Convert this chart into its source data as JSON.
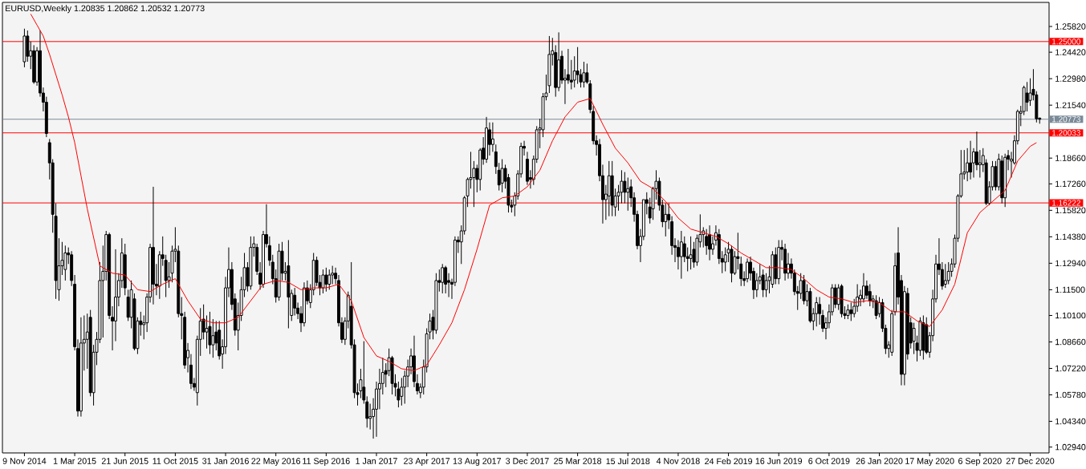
{
  "chart_data": {
    "type": "candlestick",
    "title": "EURUSD,Weekly 1.20835 1.20862 1.20532 1.20773",
    "xlim": [
      "2014-09-21",
      "2021-02-07"
    ],
    "xticks": [
      {
        "value": "2014-11-09",
        "label": "9 Nov 2014"
      },
      {
        "value": "2015-03-01",
        "label": "1 Mar 2015"
      },
      {
        "value": "2015-06-21",
        "label": "21 Jun 2015"
      },
      {
        "value": "2015-10-11",
        "label": "11 Oct 2015"
      },
      {
        "value": "2016-01-31",
        "label": "31 Jan 2016"
      },
      {
        "value": "2016-05-22",
        "label": "22 May 2016"
      },
      {
        "value": "2016-09-11",
        "label": "11 Sep 2016"
      },
      {
        "value": "2017-01-01",
        "label": "1 Jan 2017"
      },
      {
        "value": "2017-04-23",
        "label": "23 Apr 2017"
      },
      {
        "value": "2017-08-13",
        "label": "13 Aug 2017"
      },
      {
        "value": "2017-12-03",
        "label": "3 Dec 2017"
      },
      {
        "value": "2018-03-25",
        "label": "25 Mar 2018"
      },
      {
        "value": "2018-07-15",
        "label": "15 Jul 2018"
      },
      {
        "value": "2018-11-04",
        "label": "4 Nov 2018"
      },
      {
        "value": "2019-02-24",
        "label": "24 Feb 2019"
      },
      {
        "value": "2019-06-16",
        "label": "16 Jun 2019"
      },
      {
        "value": "2019-10-06",
        "label": "6 Oct 2019"
      },
      {
        "value": "2020-01-26",
        "label": "26 Jan 2020"
      },
      {
        "value": "2020-05-17",
        "label": "17 May 2020"
      },
      {
        "value": "2020-09-06",
        "label": "6 Sep 2020"
      },
      {
        "value": "2020-12-27",
        "label": "27 Dec 2020"
      }
    ],
    "ylim": [
      1.0262,
      1.2713
    ],
    "yticks": [
      {
        "value": 1.2582,
        "label": "1.25820"
      },
      {
        "value": 1.2442,
        "label": "1.24420"
      },
      {
        "value": 1.2298,
        "label": "1.22980"
      },
      {
        "value": 1.2154,
        "label": "1.21540"
      },
      {
        "value": 1.1866,
        "label": "1.18660"
      },
      {
        "value": 1.1726,
        "label": "1.17260"
      },
      {
        "value": 1.1582,
        "label": "1.15820"
      },
      {
        "value": 1.1438,
        "label": "1.14380"
      },
      {
        "value": 1.1294,
        "label": "1.12940"
      },
      {
        "value": 1.115,
        "label": "1.11500"
      },
      {
        "value": 1.101,
        "label": "1.10100"
      },
      {
        "value": 1.0866,
        "label": "1.08660"
      },
      {
        "value": 1.0722,
        "label": "1.07220"
      },
      {
        "value": 1.0578,
        "label": "1.05780"
      },
      {
        "value": 1.0434,
        "label": "1.04340"
      },
      {
        "value": 1.0294,
        "label": "1.02940"
      }
    ],
    "ref_lines": [
      {
        "axis": "y",
        "value": 1.25,
        "label": "1.25000",
        "color": "#ff0000"
      },
      {
        "axis": "y",
        "value": 1.20773,
        "label": "1.20773",
        "color": "#7b8a99"
      },
      {
        "axis": "y",
        "value": 1.20033,
        "label": "1.20033",
        "color": "#ff0000"
      },
      {
        "axis": "y",
        "value": 1.16222,
        "label": "1.16222",
        "color": "#ff0000"
      }
    ],
    "x": [
      "2014-11-09",
      "2014-11-16",
      "2014-11-23",
      "2014-11-30",
      "2014-12-07",
      "2014-12-14",
      "2014-12-21",
      "2014-12-28",
      "2015-01-04",
      "2015-01-11",
      "2015-01-18",
      "2015-01-25",
      "2015-02-01",
      "2015-02-08",
      "2015-02-15",
      "2015-02-22",
      "2015-03-01",
      "2015-03-08",
      "2015-03-15",
      "2015-03-22",
      "2015-03-29",
      "2015-04-05",
      "2015-04-12",
      "2015-04-19",
      "2015-04-26",
      "2015-05-03",
      "2015-05-10",
      "2015-05-17",
      "2015-05-24",
      "2015-05-31",
      "2015-06-07",
      "2015-06-14",
      "2015-06-21",
      "2015-06-28",
      "2015-07-05",
      "2015-07-12",
      "2015-07-19",
      "2015-07-26",
      "2015-08-02",
      "2015-08-09",
      "2015-08-16",
      "2015-08-23",
      "2015-08-30",
      "2015-09-06",
      "2015-09-13",
      "2015-09-20",
      "2015-09-27",
      "2015-10-04",
      "2015-10-11",
      "2015-10-18",
      "2015-10-25",
      "2015-11-01",
      "2015-11-08",
      "2015-11-15",
      "2015-11-22",
      "2015-11-29",
      "2015-12-06",
      "2015-12-13",
      "2015-12-20",
      "2015-12-27",
      "2016-01-03",
      "2016-01-10",
      "2016-01-17",
      "2016-01-24",
      "2016-01-31",
      "2016-02-07",
      "2016-02-14",
      "2016-02-21",
      "2016-02-28",
      "2016-03-06",
      "2016-03-13",
      "2016-03-20",
      "2016-03-27",
      "2016-04-03",
      "2016-04-10",
      "2016-04-17",
      "2016-04-24",
      "2016-05-01",
      "2016-05-08",
      "2016-05-15",
      "2016-05-22",
      "2016-05-29",
      "2016-06-05",
      "2016-06-12",
      "2016-06-19",
      "2016-06-26",
      "2016-07-03",
      "2016-07-10",
      "2016-07-17",
      "2016-07-24",
      "2016-07-31",
      "2016-08-07",
      "2016-08-14",
      "2016-08-21",
      "2016-08-28",
      "2016-09-04",
      "2016-09-11",
      "2016-09-18",
      "2016-09-25",
      "2016-10-02",
      "2016-10-09",
      "2016-10-16",
      "2016-10-23",
      "2016-10-30",
      "2016-11-06",
      "2016-11-13",
      "2016-11-20",
      "2016-11-27",
      "2016-12-04",
      "2016-12-11",
      "2016-12-18",
      "2016-12-25",
      "2017-01-01",
      "2017-01-08",
      "2017-01-15",
      "2017-01-22",
      "2017-01-29",
      "2017-02-05",
      "2017-02-12",
      "2017-02-19",
      "2017-02-26",
      "2017-03-05",
      "2017-03-12",
      "2017-03-19",
      "2017-03-26",
      "2017-04-02",
      "2017-04-09",
      "2017-04-16",
      "2017-04-23",
      "2017-04-30",
      "2017-05-07",
      "2017-05-14",
      "2017-05-21",
      "2017-05-28",
      "2017-06-04",
      "2017-06-11",
      "2017-06-18",
      "2017-06-25",
      "2017-07-02",
      "2017-07-09",
      "2017-07-16",
      "2017-07-23",
      "2017-07-30",
      "2017-08-06",
      "2017-08-13",
      "2017-08-20",
      "2017-08-27",
      "2017-09-03",
      "2017-09-10",
      "2017-09-17",
      "2017-09-24",
      "2017-10-01",
      "2017-10-08",
      "2017-10-15",
      "2017-10-22",
      "2017-10-29",
      "2017-11-05",
      "2017-11-12",
      "2017-11-19",
      "2017-11-26",
      "2017-12-03",
      "2017-12-10",
      "2017-12-17",
      "2017-12-24",
      "2017-12-31",
      "2018-01-07",
      "2018-01-14",
      "2018-01-21",
      "2018-01-28",
      "2018-02-04",
      "2018-02-11",
      "2018-02-18",
      "2018-02-25",
      "2018-03-04",
      "2018-03-11",
      "2018-03-18",
      "2018-03-25",
      "2018-04-01",
      "2018-04-08",
      "2018-04-15",
      "2018-04-22",
      "2018-04-29",
      "2018-05-06",
      "2018-05-13",
      "2018-05-20",
      "2018-05-27",
      "2018-06-03",
      "2018-06-10",
      "2018-06-17",
      "2018-06-24",
      "2018-07-01",
      "2018-07-08",
      "2018-07-15",
      "2018-07-22",
      "2018-07-29",
      "2018-08-05",
      "2018-08-12",
      "2018-08-19",
      "2018-08-26",
      "2018-09-02",
      "2018-09-09",
      "2018-09-16",
      "2018-09-23",
      "2018-09-30",
      "2018-10-07",
      "2018-10-14",
      "2018-10-21",
      "2018-10-28",
      "2018-11-04",
      "2018-11-11",
      "2018-11-18",
      "2018-11-25",
      "2018-12-02",
      "2018-12-09",
      "2018-12-16",
      "2018-12-23",
      "2018-12-30",
      "2019-01-06",
      "2019-01-13",
      "2019-01-20",
      "2019-01-27",
      "2019-02-03",
      "2019-02-10",
      "2019-02-17",
      "2019-02-24",
      "2019-03-03",
      "2019-03-10",
      "2019-03-17",
      "2019-03-24",
      "2019-03-31",
      "2019-04-07",
      "2019-04-14",
      "2019-04-21",
      "2019-04-28",
      "2019-05-05",
      "2019-05-12",
      "2019-05-19",
      "2019-05-26",
      "2019-06-02",
      "2019-06-09",
      "2019-06-16",
      "2019-06-23",
      "2019-06-30",
      "2019-07-07",
      "2019-07-14",
      "2019-07-21",
      "2019-07-28",
      "2019-08-04",
      "2019-08-11",
      "2019-08-18",
      "2019-08-25",
      "2019-09-01",
      "2019-09-08",
      "2019-09-15",
      "2019-09-22",
      "2019-09-29",
      "2019-10-06",
      "2019-10-13",
      "2019-10-20",
      "2019-10-27",
      "2019-11-03",
      "2019-11-10",
      "2019-11-17",
      "2019-11-24",
      "2019-12-01",
      "2019-12-08",
      "2019-12-15",
      "2019-12-22",
      "2019-12-29",
      "2020-01-05",
      "2020-01-12",
      "2020-01-19",
      "2020-01-26",
      "2020-02-02",
      "2020-02-09",
      "2020-02-16",
      "2020-02-23",
      "2020-03-01",
      "2020-03-08",
      "2020-03-15",
      "2020-03-22",
      "2020-03-29",
      "2020-04-05",
      "2020-04-12",
      "2020-04-19",
      "2020-04-26",
      "2020-05-03",
      "2020-05-10",
      "2020-05-17",
      "2020-05-24",
      "2020-05-31",
      "2020-06-07",
      "2020-06-14",
      "2020-06-21",
      "2020-06-28",
      "2020-07-05",
      "2020-07-12",
      "2020-07-19",
      "2020-07-26",
      "2020-08-02",
      "2020-08-09",
      "2020-08-16",
      "2020-08-23",
      "2020-08-30",
      "2020-09-06",
      "2020-09-13",
      "2020-09-20",
      "2020-09-27",
      "2020-10-04",
      "2020-10-11",
      "2020-10-18",
      "2020-10-25",
      "2020-11-01",
      "2020-11-08",
      "2020-11-15",
      "2020-11-22",
      "2020-11-29",
      "2020-12-06",
      "2020-12-13",
      "2020-12-20",
      "2020-12-27",
      "2021-01-03",
      "2021-01-10",
      "2021-01-17"
    ],
    "ohlc": [
      [
        1.239,
        1.257,
        1.236,
        1.253
      ],
      [
        1.253,
        1.256,
        1.239,
        1.242
      ],
      [
        1.242,
        1.25,
        1.235,
        1.245
      ],
      [
        1.245,
        1.248,
        1.227,
        1.228
      ],
      [
        1.228,
        1.247,
        1.226,
        1.245
      ],
      [
        1.245,
        1.256,
        1.22,
        1.222
      ],
      [
        1.222,
        1.225,
        1.212,
        1.217
      ],
      [
        1.217,
        1.22,
        1.198,
        1.2
      ],
      [
        1.195,
        1.197,
        1.175,
        1.184
      ],
      [
        1.184,
        1.186,
        1.146,
        1.156
      ],
      [
        1.155,
        1.162,
        1.11,
        1.12
      ],
      [
        1.115,
        1.143,
        1.109,
        1.128
      ],
      [
        1.128,
        1.141,
        1.123,
        1.131
      ],
      [
        1.126,
        1.139,
        1.12,
        1.135
      ],
      [
        1.135,
        1.138,
        1.129,
        1.134
      ],
      [
        1.134,
        1.136,
        1.117,
        1.12
      ],
      [
        1.118,
        1.123,
        1.082,
        1.084
      ],
      [
        1.083,
        1.088,
        1.046,
        1.049
      ],
      [
        1.049,
        1.1,
        1.046,
        1.086
      ],
      [
        1.086,
        1.101,
        1.071,
        1.088
      ],
      [
        1.088,
        1.102,
        1.072,
        1.092
      ],
      [
        1.1,
        1.104,
        1.057,
        1.059
      ],
      [
        1.059,
        1.085,
        1.052,
        1.081
      ],
      [
        1.081,
        1.092,
        1.074,
        1.088
      ],
      [
        1.088,
        1.13,
        1.086,
        1.12
      ],
      [
        1.12,
        1.139,
        1.089,
        1.125
      ],
      [
        1.125,
        1.147,
        1.12,
        1.145
      ],
      [
        1.145,
        1.146,
        1.099,
        1.101
      ],
      [
        1.1,
        1.106,
        1.082,
        1.098
      ],
      [
        1.098,
        1.137,
        1.087,
        1.111
      ],
      [
        1.111,
        1.124,
        1.106,
        1.12
      ],
      [
        1.12,
        1.143,
        1.116,
        1.135
      ],
      [
        1.134,
        1.14,
        1.112,
        1.116
      ],
      [
        1.111,
        1.115,
        1.098,
        1.1
      ],
      [
        1.1,
        1.12,
        1.094,
        1.115
      ],
      [
        1.11,
        1.113,
        1.082,
        1.083
      ],
      [
        1.083,
        1.1,
        1.08,
        1.098
      ],
      [
        1.098,
        1.103,
        1.09,
        1.096
      ],
      [
        1.096,
        1.101,
        1.088,
        1.097
      ],
      [
        1.097,
        1.113,
        1.092,
        1.111
      ],
      [
        1.111,
        1.14,
        1.108,
        1.138
      ],
      [
        1.138,
        1.171,
        1.107,
        1.118
      ],
      [
        1.118,
        1.129,
        1.112,
        1.117
      ],
      [
        1.117,
        1.136,
        1.11,
        1.134
      ],
      [
        1.134,
        1.144,
        1.128,
        1.132
      ],
      [
        1.131,
        1.134,
        1.111,
        1.12
      ],
      [
        1.12,
        1.13,
        1.116,
        1.122
      ],
      [
        1.124,
        1.139,
        1.119,
        1.136
      ],
      [
        1.136,
        1.149,
        1.13,
        1.137
      ],
      [
        1.136,
        1.139,
        1.1,
        1.102
      ],
      [
        1.102,
        1.111,
        1.088,
        1.101
      ],
      [
        1.1,
        1.103,
        1.072,
        1.074
      ],
      [
        1.078,
        1.086,
        1.07,
        1.082
      ],
      [
        1.074,
        1.08,
        1.061,
        1.064
      ],
      [
        1.064,
        1.067,
        1.06,
        1.062
      ],
      [
        1.059,
        1.09,
        1.052,
        1.088
      ],
      [
        1.088,
        1.105,
        1.079,
        1.098
      ],
      [
        1.099,
        1.107,
        1.088,
        1.092
      ],
      [
        1.092,
        1.101,
        1.083,
        1.094
      ],
      [
        1.095,
        1.103,
        1.08,
        1.085
      ],
      [
        1.085,
        1.099,
        1.078,
        1.09
      ],
      [
        1.092,
        1.098,
        1.082,
        1.086
      ],
      [
        1.093,
        1.098,
        1.077,
        1.079
      ],
      [
        1.08,
        1.088,
        1.072,
        1.084
      ],
      [
        1.084,
        1.122,
        1.08,
        1.116
      ],
      [
        1.116,
        1.138,
        1.111,
        1.126
      ],
      [
        1.126,
        1.13,
        1.104,
        1.107
      ],
      [
        1.11,
        1.113,
        1.09,
        1.093
      ],
      [
        1.093,
        1.108,
        1.082,
        1.101
      ],
      [
        1.101,
        1.122,
        1.098,
        1.115
      ],
      [
        1.115,
        1.135,
        1.111,
        1.127
      ],
      [
        1.127,
        1.13,
        1.114,
        1.117
      ],
      [
        1.117,
        1.144,
        1.115,
        1.138
      ],
      [
        1.138,
        1.144,
        1.133,
        1.14
      ],
      [
        1.138,
        1.14,
        1.123,
        1.125
      ],
      [
        1.124,
        1.13,
        1.115,
        1.118
      ],
      [
        1.118,
        1.147,
        1.116,
        1.145
      ],
      [
        1.145,
        1.1615,
        1.138,
        1.14
      ],
      [
        1.139,
        1.144,
        1.128,
        1.131
      ],
      [
        1.13,
        1.134,
        1.118,
        1.121
      ],
      [
        1.121,
        1.126,
        1.108,
        1.111
      ],
      [
        1.111,
        1.14,
        1.109,
        1.136
      ],
      [
        1.136,
        1.141,
        1.12,
        1.124
      ],
      [
        1.124,
        1.13,
        1.12,
        1.125
      ],
      [
        1.128,
        1.142,
        1.094,
        1.111
      ],
      [
        1.101,
        1.115,
        1.098,
        1.113
      ],
      [
        1.112,
        1.116,
        1.101,
        1.105
      ],
      [
        1.105,
        1.108,
        1.099,
        1.102
      ],
      [
        1.102,
        1.106,
        1.092,
        1.097
      ],
      [
        1.097,
        1.119,
        1.095,
        1.116
      ],
      [
        1.116,
        1.12,
        1.107,
        1.109
      ],
      [
        1.108,
        1.118,
        1.105,
        1.115
      ],
      [
        1.115,
        1.135,
        1.112,
        1.131
      ],
      [
        1.131,
        1.133,
        1.117,
        1.119
      ],
      [
        1.119,
        1.123,
        1.112,
        1.116
      ],
      [
        1.116,
        1.126,
        1.113,
        1.123
      ],
      [
        1.123,
        1.127,
        1.114,
        1.118
      ],
      [
        1.118,
        1.126,
        1.115,
        1.123
      ],
      [
        1.123,
        1.128,
        1.118,
        1.124
      ],
      [
        1.124,
        1.127,
        1.118,
        1.121
      ],
      [
        1.12,
        1.123,
        1.095,
        1.097
      ],
      [
        1.097,
        1.1,
        1.086,
        1.088
      ],
      [
        1.088,
        1.1,
        1.085,
        1.098
      ],
      [
        1.098,
        1.114,
        1.094,
        1.112
      ],
      [
        1.106,
        1.13,
        1.083,
        1.085
      ],
      [
        1.085,
        1.088,
        1.056,
        1.059
      ],
      [
        1.059,
        1.064,
        1.052,
        1.058
      ],
      [
        1.06,
        1.072,
        1.056,
        1.066
      ],
      [
        1.062,
        1.087,
        1.053,
        1.055
      ],
      [
        1.054,
        1.057,
        1.04,
        1.045
      ],
      [
        1.045,
        1.053,
        1.039,
        1.046
      ],
      [
        1.046,
        1.056,
        1.034,
        1.05
      ],
      [
        1.05,
        1.065,
        1.035,
        1.061
      ],
      [
        1.061,
        1.072,
        1.05,
        1.064
      ],
      [
        1.064,
        1.078,
        1.058,
        1.07
      ],
      [
        1.071,
        1.075,
        1.062,
        1.069
      ],
      [
        1.071,
        1.083,
        1.068,
        1.078
      ],
      [
        1.078,
        1.079,
        1.058,
        1.064
      ],
      [
        1.064,
        1.069,
        1.057,
        1.062
      ],
      [
        1.061,
        1.065,
        1.051,
        1.055
      ],
      [
        1.057,
        1.067,
        1.052,
        1.062
      ],
      [
        1.062,
        1.071,
        1.053,
        1.068
      ],
      [
        1.068,
        1.077,
        1.062,
        1.073
      ],
      [
        1.073,
        1.083,
        1.069,
        1.079
      ],
      [
        1.079,
        1.09,
        1.062,
        1.065
      ],
      [
        1.064,
        1.069,
        1.058,
        1.06
      ],
      [
        1.059,
        1.064,
        1.056,
        1.062
      ],
      [
        1.062,
        1.077,
        1.058,
        1.073
      ],
      [
        1.073,
        1.094,
        1.07,
        1.091
      ],
      [
        1.092,
        1.102,
        1.088,
        1.098
      ],
      [
        1.1,
        1.104,
        1.088,
        1.093
      ],
      [
        1.093,
        1.124,
        1.091,
        1.12
      ],
      [
        1.12,
        1.126,
        1.114,
        1.119
      ],
      [
        1.119,
        1.129,
        1.113,
        1.127
      ],
      [
        1.127,
        1.128,
        1.113,
        1.118
      ],
      [
        1.12,
        1.124,
        1.111,
        1.119
      ],
      [
        1.119,
        1.121,
        1.11,
        1.118
      ],
      [
        1.119,
        1.144,
        1.117,
        1.142
      ],
      [
        1.142,
        1.144,
        1.135,
        1.141
      ],
      [
        1.141,
        1.15,
        1.129,
        1.147
      ],
      [
        1.147,
        1.166,
        1.145,
        1.165
      ],
      [
        1.166,
        1.176,
        1.16,
        1.175
      ],
      [
        1.175,
        1.19,
        1.17,
        1.176
      ],
      [
        1.176,
        1.185,
        1.16,
        1.181
      ],
      [
        1.181,
        1.183,
        1.168,
        1.175
      ],
      [
        1.175,
        1.192,
        1.169,
        1.191
      ],
      [
        1.192,
        1.198,
        1.183,
        1.186
      ],
      [
        1.186,
        1.209,
        1.184,
        1.203
      ],
      [
        1.202,
        1.206,
        1.188,
        1.194
      ],
      [
        1.194,
        1.206,
        1.19,
        1.197
      ],
      [
        1.19,
        1.194,
        1.178,
        1.182
      ],
      [
        1.18,
        1.184,
        1.169,
        1.172
      ],
      [
        1.173,
        1.186,
        1.168,
        1.181
      ],
      [
        1.181,
        1.183,
        1.17,
        1.174
      ],
      [
        1.176,
        1.178,
        1.157,
        1.161
      ],
      [
        1.161,
        1.164,
        1.157,
        1.16
      ],
      [
        1.161,
        1.168,
        1.155,
        1.166
      ],
      [
        1.166,
        1.18,
        1.164,
        1.178
      ],
      [
        1.178,
        1.195,
        1.176,
        1.193
      ],
      [
        1.193,
        1.196,
        1.188,
        1.192
      ],
      [
        1.186,
        1.19,
        1.172,
        1.174
      ],
      [
        1.176,
        1.18,
        1.17,
        1.175
      ],
      [
        1.175,
        1.188,
        1.172,
        1.186
      ],
      [
        1.186,
        1.204,
        1.184,
        1.202
      ],
      [
        1.202,
        1.208,
        1.192,
        1.203
      ],
      [
        1.202,
        1.222,
        1.198,
        1.22
      ],
      [
        1.22,
        1.232,
        1.218,
        1.222
      ],
      [
        1.226,
        1.253,
        1.222,
        1.243
      ],
      [
        1.243,
        1.252,
        1.237,
        1.245
      ],
      [
        1.244,
        1.248,
        1.22,
        1.225
      ],
      [
        1.225,
        1.255,
        1.223,
        1.24
      ],
      [
        1.242,
        1.245,
        1.227,
        1.229
      ],
      [
        1.229,
        1.235,
        1.216,
        1.23
      ],
      [
        1.232,
        1.246,
        1.227,
        1.229
      ],
      [
        1.229,
        1.24,
        1.224,
        1.228
      ],
      [
        1.229,
        1.242,
        1.225,
        1.234
      ],
      [
        1.234,
        1.247,
        1.227,
        1.232
      ],
      [
        1.232,
        1.235,
        1.225,
        1.228
      ],
      [
        1.228,
        1.239,
        1.225,
        1.233
      ],
      [
        1.233,
        1.238,
        1.227,
        1.228
      ],
      [
        1.227,
        1.229,
        1.211,
        1.213
      ],
      [
        1.212,
        1.215,
        1.194,
        1.196
      ],
      [
        1.196,
        1.199,
        1.188,
        1.194
      ],
      [
        1.194,
        1.197,
        1.174,
        1.177
      ],
      [
        1.177,
        1.183,
        1.151,
        1.164
      ],
      [
        1.164,
        1.172,
        1.153,
        1.167
      ],
      [
        1.166,
        1.185,
        1.155,
        1.177
      ],
      [
        1.177,
        1.185,
        1.155,
        1.161
      ],
      [
        1.16,
        1.17,
        1.155,
        1.166
      ],
      [
        1.166,
        1.172,
        1.158,
        1.168
      ],
      [
        1.168,
        1.18,
        1.162,
        1.174
      ],
      [
        1.174,
        1.179,
        1.162,
        1.168
      ],
      [
        1.168,
        1.176,
        1.158,
        1.17
      ],
      [
        1.171,
        1.175,
        1.16,
        1.165
      ],
      [
        1.165,
        1.168,
        1.152,
        1.156
      ],
      [
        1.156,
        1.158,
        1.137,
        1.139
      ],
      [
        1.139,
        1.148,
        1.13,
        1.144
      ],
      [
        1.144,
        1.164,
        1.142,
        1.164
      ],
      [
        1.164,
        1.168,
        1.156,
        1.162
      ],
      [
        1.16,
        1.165,
        1.151,
        1.154
      ],
      [
        1.159,
        1.171,
        1.153,
        1.17
      ],
      [
        1.17,
        1.18,
        1.164,
        1.174
      ],
      [
        1.174,
        1.176,
        1.158,
        1.161
      ],
      [
        1.161,
        1.164,
        1.149,
        1.152
      ],
      [
        1.152,
        1.162,
        1.144,
        1.156
      ],
      [
        1.156,
        1.162,
        1.148,
        1.153
      ],
      [
        1.152,
        1.155,
        1.134,
        1.139
      ],
      [
        1.139,
        1.143,
        1.13,
        1.138
      ],
      [
        1.138,
        1.142,
        1.126,
        1.133
      ],
      [
        1.133,
        1.147,
        1.121,
        1.141
      ],
      [
        1.14,
        1.144,
        1.13,
        1.133
      ],
      [
        1.133,
        1.138,
        1.125,
        1.132
      ],
      [
        1.132,
        1.144,
        1.126,
        1.134
      ],
      [
        1.137,
        1.141,
        1.127,
        1.13
      ],
      [
        1.13,
        1.145,
        1.128,
        1.143
      ],
      [
        1.141,
        1.156,
        1.138,
        1.145
      ],
      [
        1.145,
        1.149,
        1.138,
        1.147
      ],
      [
        1.144,
        1.148,
        1.134,
        1.139
      ],
      [
        1.145,
        1.15,
        1.131,
        1.137
      ],
      [
        1.137,
        1.144,
        1.134,
        1.14
      ],
      [
        1.142,
        1.15,
        1.139,
        1.146
      ],
      [
        1.145,
        1.148,
        1.129,
        1.132
      ],
      [
        1.132,
        1.136,
        1.124,
        1.13
      ],
      [
        1.13,
        1.138,
        1.125,
        1.134
      ],
      [
        1.135,
        1.141,
        1.13,
        1.137
      ],
      [
        1.137,
        1.139,
        1.119,
        1.124
      ],
      [
        1.124,
        1.136,
        1.123,
        1.133
      ],
      [
        1.133,
        1.146,
        1.126,
        1.132
      ],
      [
        1.129,
        1.133,
        1.117,
        1.121
      ],
      [
        1.121,
        1.125,
        1.117,
        1.12
      ],
      [
        1.121,
        1.132,
        1.119,
        1.13
      ],
      [
        1.13,
        1.133,
        1.12,
        1.124
      ],
      [
        1.125,
        1.127,
        1.11,
        1.115
      ],
      [
        1.115,
        1.124,
        1.111,
        1.12
      ],
      [
        1.12,
        1.129,
        1.118,
        1.122
      ],
      [
        1.123,
        1.126,
        1.111,
        1.115
      ],
      [
        1.115,
        1.124,
        1.111,
        1.12
      ],
      [
        1.12,
        1.128,
        1.113,
        1.122
      ],
      [
        1.118,
        1.136,
        1.116,
        1.134
      ],
      [
        1.134,
        1.138,
        1.118,
        1.121
      ],
      [
        1.121,
        1.142,
        1.118,
        1.138
      ],
      [
        1.138,
        1.142,
        1.131,
        1.137
      ],
      [
        1.137,
        1.14,
        1.12,
        1.124
      ],
      [
        1.124,
        1.135,
        1.121,
        1.129
      ],
      [
        1.129,
        1.132,
        1.121,
        1.124
      ],
      [
        1.124,
        1.126,
        1.112,
        1.114
      ],
      [
        1.114,
        1.117,
        1.104,
        1.113
      ],
      [
        1.113,
        1.124,
        1.11,
        1.12
      ],
      [
        1.12,
        1.123,
        1.107,
        1.109
      ],
      [
        1.109,
        1.118,
        1.106,
        1.114
      ],
      [
        1.114,
        1.116,
        1.097,
        1.098
      ],
      [
        1.098,
        1.105,
        1.093,
        1.102
      ],
      [
        1.102,
        1.111,
        1.095,
        1.108
      ],
      [
        1.107,
        1.111,
        1.096,
        1.102
      ],
      [
        1.101,
        1.104,
        1.092,
        1.094
      ],
      [
        1.094,
        1.1,
        1.088,
        1.097
      ],
      [
        1.097,
        1.107,
        1.094,
        1.103
      ],
      [
        1.103,
        1.118,
        1.101,
        1.116
      ],
      [
        1.116,
        1.118,
        1.105,
        1.107
      ],
      [
        1.107,
        1.118,
        1.104,
        1.116
      ],
      [
        1.117,
        1.118,
        1.1,
        1.102
      ],
      [
        1.102,
        1.106,
        1.099,
        1.101
      ],
      [
        1.101,
        1.107,
        1.099,
        1.104
      ],
      [
        1.104,
        1.108,
        1.098,
        1.102
      ],
      [
        1.102,
        1.11,
        1.1,
        1.106
      ],
      [
        1.106,
        1.118,
        1.103,
        1.111
      ],
      [
        1.11,
        1.115,
        1.106,
        1.112
      ],
      [
        1.11,
        1.124,
        1.108,
        1.117
      ],
      [
        1.117,
        1.12,
        1.11,
        1.112
      ],
      [
        1.114,
        1.118,
        1.106,
        1.109
      ],
      [
        1.109,
        1.112,
        1.105,
        1.11
      ],
      [
        1.109,
        1.112,
        1.099,
        1.101
      ],
      [
        1.102,
        1.111,
        1.1,
        1.108
      ],
      [
        1.108,
        1.11,
        1.092,
        1.094
      ],
      [
        1.094,
        1.096,
        1.08,
        1.083
      ],
      [
        1.083,
        1.087,
        1.078,
        1.085
      ],
      [
        1.081,
        1.104,
        1.079,
        1.102
      ],
      [
        1.103,
        1.135,
        1.101,
        1.128
      ],
      [
        1.135,
        1.149,
        1.107,
        1.111
      ],
      [
        1.12,
        1.123,
        1.063,
        1.069
      ],
      [
        1.069,
        1.117,
        1.063,
        1.114
      ],
      [
        1.113,
        1.116,
        1.077,
        1.08
      ],
      [
        1.097,
        1.1,
        1.083,
        1.086
      ],
      [
        1.087,
        1.097,
        1.08,
        1.094
      ],
      [
        1.086,
        1.09,
        1.076,
        1.082
      ],
      [
        1.082,
        1.1,
        1.079,
        1.098
      ],
      [
        1.097,
        1.101,
        1.077,
        1.082
      ],
      [
        1.096,
        1.1,
        1.08,
        1.081
      ],
      [
        1.081,
        1.092,
        1.078,
        1.09
      ],
      [
        1.09,
        1.115,
        1.087,
        1.11
      ],
      [
        1.11,
        1.134,
        1.108,
        1.129
      ],
      [
        1.129,
        1.143,
        1.123,
        1.126
      ],
      [
        1.126,
        1.13,
        1.115,
        1.117
      ],
      [
        1.118,
        1.129,
        1.116,
        1.12
      ],
      [
        1.12,
        1.13,
        1.118,
        1.125
      ],
      [
        1.125,
        1.132,
        1.122,
        1.129
      ],
      [
        1.129,
        1.145,
        1.127,
        1.143
      ],
      [
        1.143,
        1.167,
        1.141,
        1.166
      ],
      [
        1.166,
        1.191,
        1.165,
        1.178
      ],
      [
        1.178,
        1.191,
        1.175,
        1.179
      ],
      [
        1.179,
        1.192,
        1.174,
        1.184
      ],
      [
        1.184,
        1.196,
        1.175,
        1.179
      ],
      [
        1.184,
        1.192,
        1.176,
        1.19
      ],
      [
        1.19,
        1.201,
        1.18,
        1.183
      ],
      [
        1.183,
        1.191,
        1.176,
        1.184
      ],
      [
        1.183,
        1.192,
        1.179,
        1.188
      ],
      [
        1.184,
        1.186,
        1.161,
        1.162
      ],
      [
        1.162,
        1.174,
        1.161,
        1.171
      ],
      [
        1.171,
        1.185,
        1.169,
        1.182
      ],
      [
        1.182,
        1.185,
        1.169,
        1.171
      ],
      [
        1.171,
        1.189,
        1.169,
        1.186
      ],
      [
        1.185,
        1.188,
        1.162,
        1.165
      ],
      [
        1.165,
        1.189,
        1.16,
        1.187
      ],
      [
        1.188,
        1.191,
        1.18,
        1.186
      ],
      [
        1.185,
        1.19,
        1.176,
        1.186
      ],
      [
        1.184,
        1.199,
        1.183,
        1.196
      ],
      [
        1.196,
        1.213,
        1.194,
        1.212
      ],
      [
        1.211,
        1.215,
        1.204,
        1.212
      ],
      [
        1.212,
        1.226,
        1.21,
        1.225
      ],
      [
        1.222,
        1.228,
        1.212,
        1.217
      ],
      [
        1.218,
        1.23,
        1.215,
        1.222
      ],
      [
        1.224,
        1.235,
        1.218,
        1.221
      ],
      [
        1.221,
        1.223,
        1.206,
        1.208
      ],
      [
        1.20835,
        1.20862,
        1.20532,
        1.20773
      ]
    ],
    "series": [
      {
        "type": "line",
        "color": "#ff0000",
        "x": [
          "2014-11-23",
          "2014-12-07",
          "2014-12-21",
          "2015-01-04",
          "2015-01-18",
          "2015-02-01",
          "2015-02-15",
          "2015-03-01",
          "2015-03-15",
          "2015-03-29",
          "2015-04-26",
          "2015-05-24",
          "2015-06-21",
          "2015-07-19",
          "2015-08-16",
          "2015-09-13",
          "2015-10-11",
          "2015-11-08",
          "2015-12-06",
          "2016-01-03",
          "2016-01-31",
          "2016-02-28",
          "2016-03-27",
          "2016-04-24",
          "2016-05-22",
          "2016-06-19",
          "2016-07-17",
          "2016-08-14",
          "2016-09-11",
          "2016-10-09",
          "2016-11-06",
          "2016-12-04",
          "2017-01-01",
          "2017-01-29",
          "2017-02-26",
          "2017-03-26",
          "2017-04-23",
          "2017-05-21",
          "2017-06-18",
          "2017-07-16",
          "2017-08-13",
          "2017-09-10",
          "2017-10-08",
          "2017-11-05",
          "2017-12-03",
          "2017-12-31",
          "2018-01-28",
          "2018-02-25",
          "2018-03-25",
          "2018-04-22",
          "2018-05-20",
          "2018-06-17",
          "2018-07-15",
          "2018-08-12",
          "2018-09-09",
          "2018-10-07",
          "2018-11-04",
          "2018-12-02",
          "2018-12-30",
          "2019-01-27",
          "2019-02-24",
          "2019-03-24",
          "2019-04-21",
          "2019-05-19",
          "2019-06-16",
          "2019-07-14",
          "2019-08-11",
          "2019-09-08",
          "2019-10-06",
          "2019-11-03",
          "2019-12-01",
          "2019-12-29",
          "2020-01-26",
          "2020-02-23",
          "2020-03-22",
          "2020-04-19",
          "2020-05-17",
          "2020-06-14",
          "2020-07-12",
          "2020-08-09",
          "2020-09-06",
          "2020-10-04",
          "2020-11-01",
          "2020-11-29",
          "2020-12-27",
          "2021-01-10"
        ],
        "values": [
          1.265,
          1.259,
          1.253,
          1.243,
          1.232,
          1.221,
          1.209,
          1.195,
          1.177,
          1.159,
          1.128,
          1.124,
          1.123,
          1.115,
          1.114,
          1.118,
          1.121,
          1.109,
          1.099,
          1.097,
          1.097,
          1.1,
          1.109,
          1.118,
          1.12,
          1.119,
          1.115,
          1.116,
          1.116,
          1.118,
          1.109,
          1.089,
          1.079,
          1.076,
          1.072,
          1.071,
          1.074,
          1.085,
          1.097,
          1.115,
          1.137,
          1.161,
          1.165,
          1.166,
          1.171,
          1.18,
          1.196,
          1.209,
          1.217,
          1.219,
          1.205,
          1.192,
          1.184,
          1.174,
          1.17,
          1.163,
          1.154,
          1.148,
          1.146,
          1.144,
          1.14,
          1.135,
          1.131,
          1.127,
          1.127,
          1.126,
          1.121,
          1.115,
          1.111,
          1.11,
          1.108,
          1.109,
          1.108,
          1.103,
          1.103,
          1.098,
          1.095,
          1.104,
          1.118,
          1.146,
          1.157,
          1.163,
          1.169,
          1.185,
          1.193,
          1.195
        ]
      }
    ]
  }
}
